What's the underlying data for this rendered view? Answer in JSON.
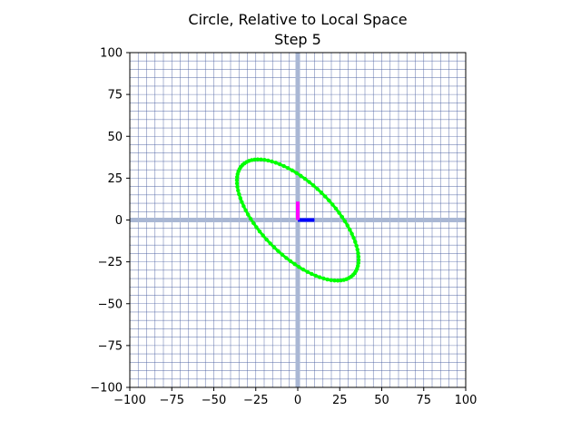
{
  "chart_data": {
    "type": "line",
    "title": "Circle, Relative to Local Space",
    "subtitle": "Step 5",
    "xlim": [
      -100,
      100
    ],
    "ylim": [
      -100,
      100
    ],
    "xticks": [
      "−100",
      "−75",
      "−50",
      "−25",
      "0",
      "25",
      "50",
      "75",
      "100"
    ],
    "yticks": [
      "100",
      "75",
      "50",
      "25",
      "0",
      "−25",
      "−50",
      "−75",
      "−100"
    ],
    "xtick_values": [
      -100,
      -75,
      -50,
      -25,
      0,
      25,
      50,
      75,
      100
    ],
    "ytick_values": [
      100,
      75,
      50,
      25,
      0,
      -25,
      -50,
      -75,
      -100
    ],
    "grid": true,
    "grid_step": 5,
    "ellipse": {
      "center": [
        0,
        0
      ],
      "semi_major": 46.5,
      "semi_minor": 21.5,
      "angle_deg": -45,
      "color": "#00ff00"
    },
    "axis_markers": [
      {
        "axis": "x",
        "from": [
          0,
          0
        ],
        "to": [
          10,
          0
        ],
        "color": "#0000ff"
      },
      {
        "axis": "y",
        "from": [
          0,
          0
        ],
        "to": [
          0,
          11
        ],
        "color": "#ff00ff"
      }
    ],
    "colors": {
      "grid": "#4a5fa0",
      "origin_axes": "#a9b7d4",
      "frame": "#000000"
    }
  }
}
